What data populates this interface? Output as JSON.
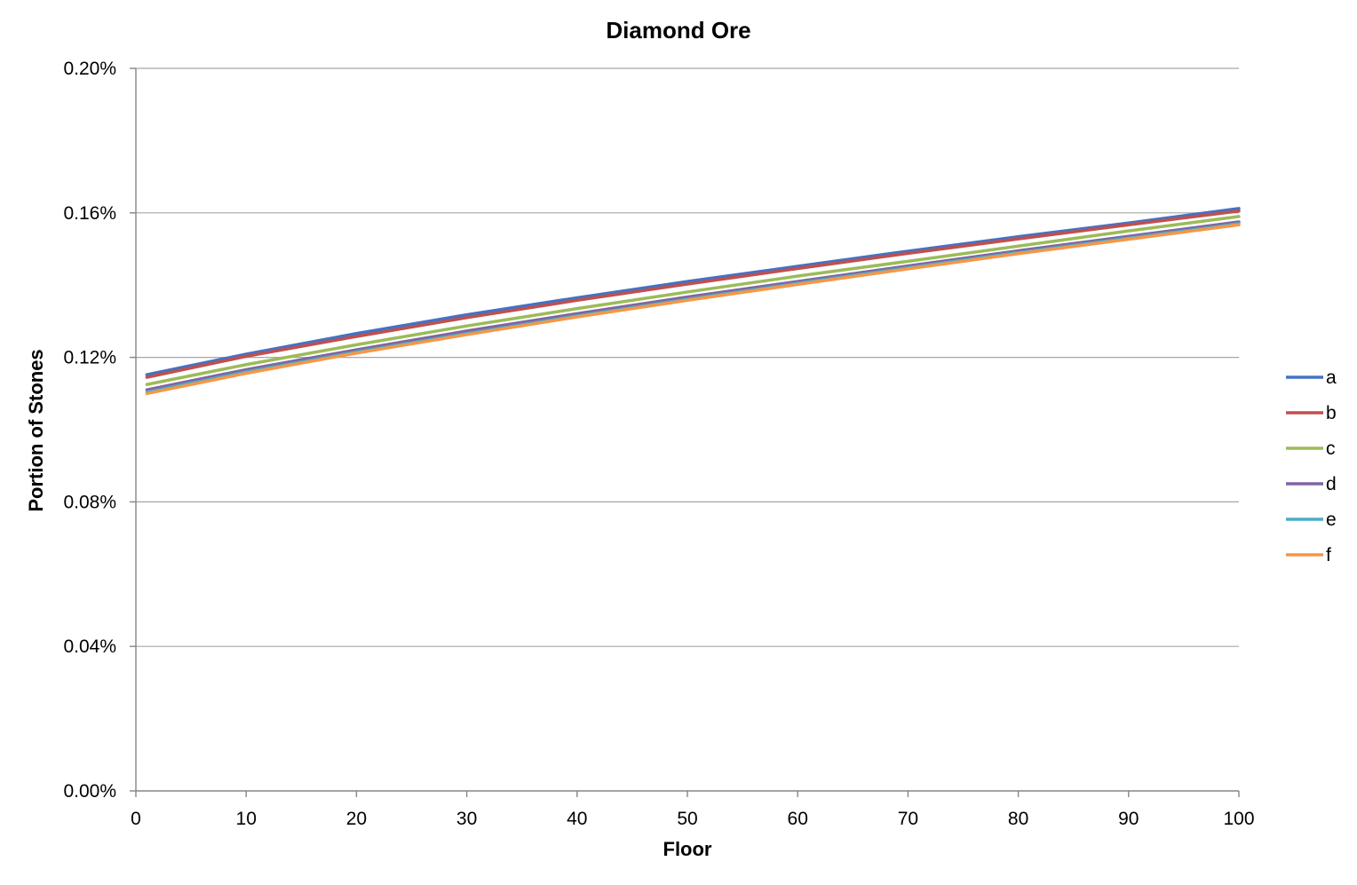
{
  "chart_data": {
    "type": "line",
    "title": "Diamond Ore",
    "xlabel": "Floor",
    "ylabel": "Portion of Stones",
    "xlim": [
      0,
      100
    ],
    "ylim": [
      0,
      0.2
    ],
    "y_unit": "%",
    "xticks": [
      "0",
      "10",
      "20",
      "30",
      "40",
      "50",
      "60",
      "70",
      "80",
      "90",
      "100"
    ],
    "yticks": [
      "0.00%",
      "0.04%",
      "0.08%",
      "0.12%",
      "0.16%",
      "0.20%"
    ],
    "grid": "horizontal",
    "legend_position": "right",
    "x": [
      1,
      10,
      20,
      30,
      40,
      50,
      60,
      70,
      80,
      90,
      100
    ],
    "series": [
      {
        "name": "a",
        "color": "#4472c4",
        "values": [
          0.1152,
          0.1209,
          0.1266,
          0.1318,
          0.1365,
          0.141,
          0.1452,
          0.1494,
          0.1534,
          0.1572,
          0.1612
        ]
      },
      {
        "name": "b",
        "color": "#c0504d",
        "values": [
          0.1145,
          0.1203,
          0.1258,
          0.131,
          0.1358,
          0.1403,
          0.1446,
          0.1488,
          0.1528,
          0.1567,
          0.1605
        ]
      },
      {
        "name": "c",
        "color": "#9bbb59",
        "values": [
          0.1125,
          0.118,
          0.1235,
          0.1287,
          0.1335,
          0.1381,
          0.1425,
          0.1466,
          0.1508,
          0.155,
          0.159
        ]
      },
      {
        "name": "d",
        "color": "#8064a2",
        "values": [
          0.111,
          0.1166,
          0.1221,
          0.1273,
          0.1321,
          0.1367,
          0.141,
          0.1453,
          0.1495,
          0.1535,
          0.1575
        ]
      },
      {
        "name": "e",
        "color": "#4bacc6",
        "values": [
          0.1104,
          0.116,
          0.1215,
          0.1266,
          0.1315,
          0.1361,
          0.1405,
          0.1448,
          0.149,
          0.153,
          0.157
        ]
      },
      {
        "name": "f",
        "color": "#f79646",
        "values": [
          0.11,
          0.1156,
          0.1212,
          0.1263,
          0.1312,
          0.1358,
          0.1402,
          0.1445,
          0.1487,
          0.1527,
          0.1567
        ]
      }
    ]
  }
}
